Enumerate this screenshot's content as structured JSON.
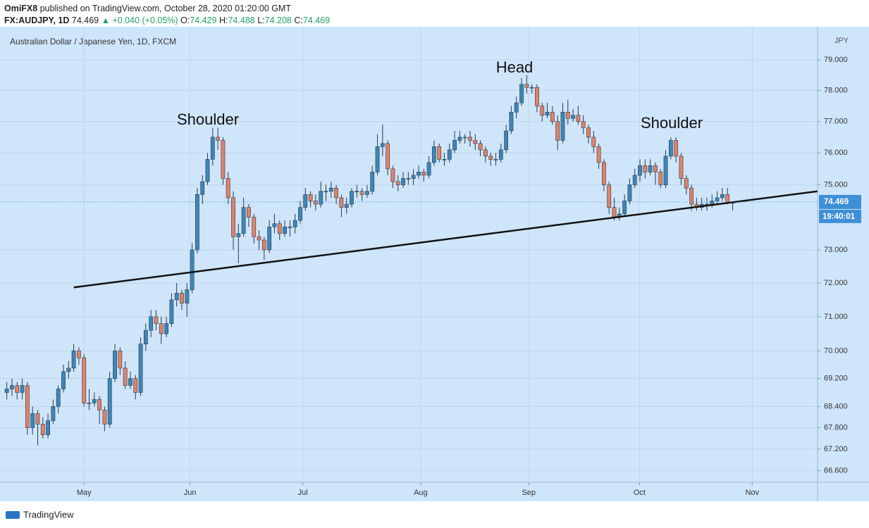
{
  "header": {
    "publisher": "OmiFX8",
    "published": "published on TradingView.com, October 28, 2020 01:20:00 GMT",
    "symbol": "FX:AUDJPY, 1D",
    "last": "74.469",
    "change": "+0.040 (+0.05%)",
    "ohlc": [
      {
        "label": "O:",
        "value": "74.429"
      },
      {
        "label": "H:",
        "value": "74.488"
      },
      {
        "label": "L:",
        "value": "74.208"
      },
      {
        "label": "C:",
        "value": "74.469"
      }
    ]
  },
  "chart_data": {
    "type": "candlestick",
    "title": "Australian Dollar / Japanese Yen, 1D, FXCM",
    "y_unit": "JPY",
    "log": true,
    "grid": true,
    "up_color": "#3d86b8",
    "down_color": "#e0826a",
    "xlim": [
      -0.5,
      157.5
    ],
    "xticks": [
      {
        "value": 15,
        "label": "May"
      },
      {
        "value": 35.6,
        "label": "Jun"
      },
      {
        "value": 57.5,
        "label": "Jul"
      },
      {
        "value": 80.4,
        "label": "Aug"
      },
      {
        "value": 101.4,
        "label": "Sep"
      },
      {
        "value": 122.9,
        "label": "Oct"
      },
      {
        "value": 144.8,
        "label": "Nov"
      }
    ],
    "ylim": [
      66.3,
      79.93
    ],
    "yticks": [
      {
        "value": 66.6,
        "label": "66.600"
      },
      {
        "value": 67.2,
        "label": "67.200"
      },
      {
        "value": 67.8,
        "label": "67.800"
      },
      {
        "value": 68.4,
        "label": "68.400"
      },
      {
        "value": 69.2,
        "label": "69.200"
      },
      {
        "value": 70,
        "label": "70.000"
      },
      {
        "value": 71,
        "label": "71.000"
      },
      {
        "value": 72,
        "label": "72.000"
      },
      {
        "value": 73,
        "label": "73.000"
      },
      {
        "value": 75,
        "label": "75.000"
      },
      {
        "value": 76,
        "label": "76.000"
      },
      {
        "value": 77,
        "label": "77.000"
      },
      {
        "value": 78,
        "label": "78.000"
      },
      {
        "value": 79,
        "label": "79.000"
      }
    ],
    "ohlc": [
      [
        68.8,
        69.1,
        68.6,
        68.9
      ],
      [
        68.9,
        69.2,
        68.7,
        69.0
      ],
      [
        69.0,
        69.1,
        68.6,
        68.8
      ],
      [
        68.8,
        69.2,
        68.6,
        69.0
      ],
      [
        69.0,
        69.1,
        67.6,
        67.8
      ],
      [
        67.8,
        68.4,
        67.6,
        68.2
      ],
      [
        68.2,
        68.3,
        67.3,
        67.9
      ],
      [
        67.9,
        68.1,
        67.5,
        67.6
      ],
      [
        67.6,
        68.2,
        67.5,
        68.0
      ],
      [
        68.0,
        68.6,
        67.9,
        68.4
      ],
      [
        68.4,
        69.0,
        68.2,
        68.9
      ],
      [
        68.9,
        69.6,
        68.8,
        69.4
      ],
      [
        69.4,
        69.7,
        69.2,
        69.5
      ],
      [
        69.5,
        70.2,
        69.4,
        70.0
      ],
      [
        70.0,
        70.1,
        69.6,
        69.8
      ],
      [
        69.8,
        69.9,
        68.4,
        68.5
      ],
      [
        68.5,
        68.9,
        68.3,
        68.5
      ],
      [
        68.5,
        68.8,
        68.4,
        68.6
      ],
      [
        68.6,
        68.7,
        67.9,
        68.3
      ],
      [
        68.3,
        68.4,
        67.7,
        67.9
      ],
      [
        67.9,
        69.4,
        67.8,
        69.2
      ],
      [
        69.2,
        70.2,
        69.1,
        70.0
      ],
      [
        70.0,
        70.1,
        69.3,
        69.5
      ],
      [
        69.5,
        69.7,
        68.9,
        69.0
      ],
      [
        69.0,
        69.4,
        68.9,
        69.2
      ],
      [
        69.2,
        69.3,
        68.6,
        68.8
      ],
      [
        68.8,
        70.4,
        68.7,
        70.2
      ],
      [
        70.2,
        70.8,
        70.0,
        70.6
      ],
      [
        70.6,
        71.2,
        70.4,
        71.0
      ],
      [
        71.0,
        71.2,
        70.6,
        70.8
      ],
      [
        70.8,
        71.0,
        70.2,
        70.5
      ],
      [
        70.5,
        71.0,
        70.4,
        70.8
      ],
      [
        70.8,
        71.7,
        70.7,
        71.5
      ],
      [
        71.5,
        72.0,
        71.3,
        71.7
      ],
      [
        71.7,
        71.8,
        71.2,
        71.4
      ],
      [
        71.4,
        72.0,
        71.0,
        71.8
      ],
      [
        71.8,
        73.2,
        71.7,
        73.0
      ],
      [
        73.0,
        74.9,
        72.9,
        74.7
      ],
      [
        74.7,
        75.3,
        74.4,
        75.1
      ],
      [
        75.1,
        76.0,
        75.0,
        75.8
      ],
      [
        75.8,
        76.8,
        75.6,
        76.5
      ],
      [
        76.5,
        76.8,
        76.1,
        76.4
      ],
      [
        76.4,
        76.5,
        75.0,
        75.2
      ],
      [
        75.2,
        75.4,
        74.4,
        74.6
      ],
      [
        74.6,
        74.8,
        73.0,
        73.4
      ],
      [
        73.4,
        73.8,
        72.6,
        73.5
      ],
      [
        73.5,
        74.6,
        73.4,
        74.3
      ],
      [
        74.3,
        74.4,
        73.7,
        74.0
      ],
      [
        74.0,
        74.1,
        73.2,
        73.4
      ],
      [
        73.4,
        73.6,
        73.0,
        73.3
      ],
      [
        73.3,
        73.4,
        72.7,
        73.0
      ],
      [
        73.0,
        73.9,
        72.9,
        73.7
      ],
      [
        73.7,
        74.1,
        73.5,
        73.8
      ],
      [
        73.8,
        73.9,
        73.3,
        73.5
      ],
      [
        73.5,
        73.9,
        73.4,
        73.7
      ],
      [
        73.7,
        73.9,
        73.4,
        73.7
      ],
      [
        73.7,
        74.1,
        73.5,
        73.9
      ],
      [
        73.9,
        74.5,
        73.8,
        74.3
      ],
      [
        74.3,
        74.9,
        74.2,
        74.7
      ],
      [
        74.7,
        74.8,
        74.3,
        74.5
      ],
      [
        74.5,
        74.7,
        74.2,
        74.4
      ],
      [
        74.4,
        75.1,
        74.3,
        74.8
      ],
      [
        74.8,
        75.0,
        74.5,
        74.8
      ],
      [
        74.8,
        75.1,
        74.6,
        74.9
      ],
      [
        74.9,
        75.0,
        74.4,
        74.6
      ],
      [
        74.6,
        74.7,
        74.0,
        74.3
      ],
      [
        74.3,
        74.6,
        74.1,
        74.4
      ],
      [
        74.4,
        74.9,
        74.3,
        74.8
      ],
      [
        74.8,
        75.0,
        74.6,
        74.8
      ],
      [
        74.8,
        74.9,
        74.5,
        74.7
      ],
      [
        74.7,
        75.0,
        74.6,
        74.8
      ],
      [
        74.8,
        75.6,
        74.7,
        75.4
      ],
      [
        75.4,
        76.6,
        75.3,
        76.2
      ],
      [
        76.2,
        76.9,
        75.9,
        76.3
      ],
      [
        76.3,
        76.4,
        75.3,
        75.5
      ],
      [
        75.5,
        75.6,
        74.9,
        75.1
      ],
      [
        75.1,
        75.3,
        74.8,
        75.0
      ],
      [
        75.0,
        75.4,
        74.9,
        75.2
      ],
      [
        75.2,
        75.4,
        75.0,
        75.2
      ],
      [
        75.2,
        75.5,
        75.0,
        75.3
      ],
      [
        75.3,
        75.6,
        75.2,
        75.4
      ],
      [
        75.4,
        75.5,
        75.1,
        75.3
      ],
      [
        75.3,
        75.9,
        75.2,
        75.7
      ],
      [
        75.7,
        76.4,
        75.6,
        76.2
      ],
      [
        76.2,
        76.3,
        75.7,
        75.8
      ],
      [
        75.8,
        76.0,
        75.6,
        75.8
      ],
      [
        75.8,
        76.3,
        75.7,
        76.1
      ],
      [
        76.1,
        76.7,
        76.0,
        76.4
      ],
      [
        76.4,
        76.7,
        76.3,
        76.5
      ],
      [
        76.5,
        76.6,
        76.3,
        76.5
      ],
      [
        76.5,
        76.7,
        76.2,
        76.4
      ],
      [
        76.4,
        76.6,
        76.1,
        76.3
      ],
      [
        76.3,
        76.4,
        75.9,
        76.1
      ],
      [
        76.1,
        76.2,
        75.7,
        75.9
      ],
      [
        75.9,
        76.0,
        75.6,
        75.8
      ],
      [
        75.8,
        76.0,
        75.6,
        75.8
      ],
      [
        75.8,
        76.3,
        75.7,
        76.1
      ],
      [
        76.1,
        76.9,
        76.0,
        76.7
      ],
      [
        76.7,
        77.5,
        76.6,
        77.3
      ],
      [
        77.3,
        77.8,
        77.1,
        77.6
      ],
      [
        77.6,
        78.4,
        77.5,
        78.2
      ],
      [
        78.2,
        78.5,
        77.9,
        78.1
      ],
      [
        78.1,
        78.2,
        77.9,
        78.1
      ],
      [
        78.1,
        78.2,
        77.3,
        77.5
      ],
      [
        77.5,
        77.6,
        77.0,
        77.2
      ],
      [
        77.2,
        77.6,
        77.1,
        77.3
      ],
      [
        77.3,
        77.5,
        76.9,
        77.0
      ],
      [
        77.0,
        77.2,
        76.1,
        76.4
      ],
      [
        76.4,
        77.6,
        76.3,
        77.3
      ],
      [
        77.3,
        77.7,
        76.9,
        77.1
      ],
      [
        77.1,
        77.4,
        77.0,
        77.2
      ],
      [
        77.2,
        77.5,
        76.9,
        77.0
      ],
      [
        77.0,
        77.2,
        76.6,
        76.8
      ],
      [
        76.8,
        76.9,
        76.3,
        76.5
      ],
      [
        76.5,
        76.7,
        76.0,
        76.2
      ],
      [
        76.2,
        76.3,
        75.5,
        75.7
      ],
      [
        75.7,
        75.8,
        74.8,
        75.0
      ],
      [
        75.0,
        75.1,
        74.1,
        74.3
      ],
      [
        74.3,
        74.6,
        73.9,
        74.0
      ],
      [
        74.0,
        74.3,
        73.9,
        74.1
      ],
      [
        74.1,
        74.7,
        74.0,
        74.5
      ],
      [
        74.5,
        75.2,
        74.4,
        75.0
      ],
      [
        75.0,
        75.5,
        74.9,
        75.3
      ],
      [
        75.3,
        75.8,
        75.1,
        75.6
      ],
      [
        75.6,
        75.8,
        75.2,
        75.4
      ],
      [
        75.4,
        75.8,
        75.3,
        75.6
      ],
      [
        75.6,
        75.7,
        75.0,
        75.4
      ],
      [
        75.4,
        75.5,
        74.9,
        75.0
      ],
      [
        75.0,
        76.1,
        74.9,
        75.9
      ],
      [
        75.9,
        76.5,
        75.8,
        76.4
      ],
      [
        76.4,
        76.5,
        75.7,
        75.9
      ],
      [
        75.9,
        76.0,
        75.0,
        75.2
      ],
      [
        75.2,
        75.3,
        74.7,
        74.9
      ],
      [
        74.9,
        75.0,
        74.2,
        74.4
      ],
      [
        74.4,
        74.6,
        74.2,
        74.3
      ],
      [
        74.3,
        74.6,
        74.2,
        74.4
      ],
      [
        74.4,
        74.6,
        74.2,
        74.4
      ],
      [
        74.4,
        74.7,
        74.3,
        74.5
      ],
      [
        74.5,
        74.8,
        74.4,
        74.6
      ],
      [
        74.6,
        74.9,
        74.5,
        74.7
      ],
      [
        74.7,
        74.9,
        74.4,
        74.429
      ],
      [
        74.429,
        74.488,
        74.208,
        74.469
      ]
    ],
    "trendline": {
      "x": [
        13,
        157.5
      ],
      "y": [
        71.87,
        74.8
      ],
      "color": "#111111"
    },
    "annotations": [
      "Head",
      "Shoulder",
      "Shoulder"
    ],
    "last_price": 74.469,
    "countdown": "19:40:01",
    "last_color": "#3d8fd6"
  },
  "footer": {
    "brand": "TradingView"
  }
}
